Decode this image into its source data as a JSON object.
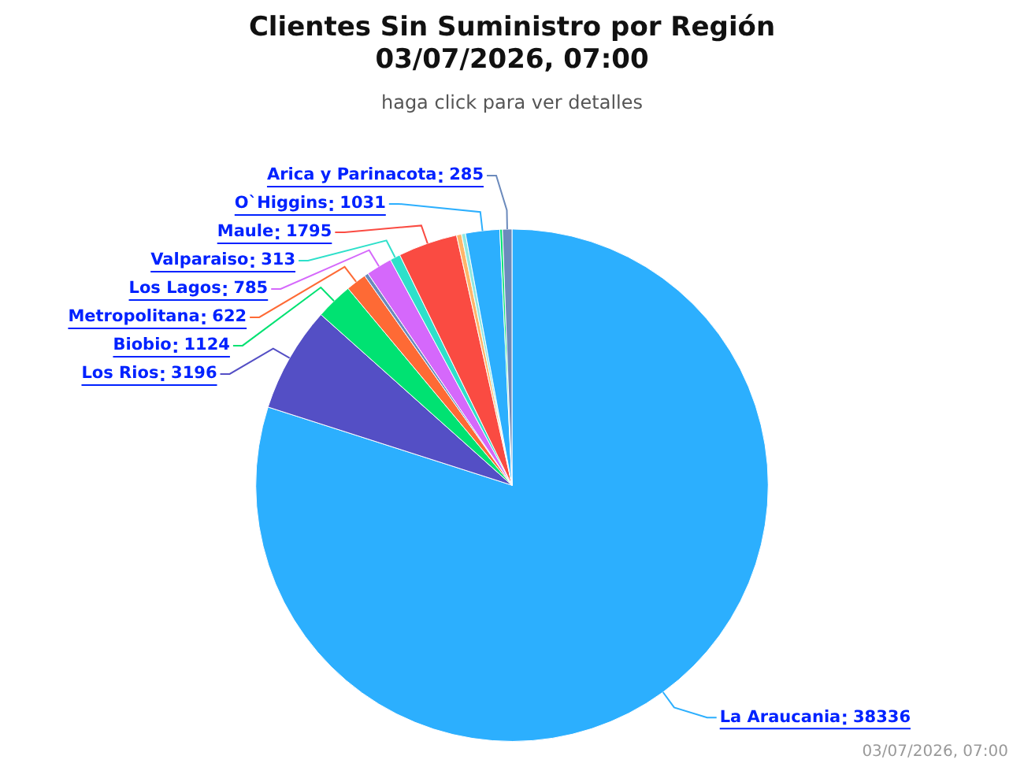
{
  "chart_data": {
    "type": "pie",
    "title": "Clientes Sin Suministro por Región\n03/07/2026, 07:00",
    "subtitle": "haga click para ver detalles",
    "categories": [
      "La Araucania",
      "Los Rios",
      "Biobio",
      "Metropolitana",
      null,
      "Los Lagos",
      "Valparaiso",
      "Maule",
      null,
      null,
      "O`Higgins",
      null,
      "Arica y Parinacota"
    ],
    "value_labels": [
      "38336",
      "3196",
      "1124",
      "622",
      null,
      "785",
      "313",
      "1795",
      null,
      null,
      "1031",
      null,
      "285"
    ],
    "values": [
      38336,
      3196,
      1124,
      622,
      120,
      785,
      313,
      1795,
      150,
      120,
      1031,
      80,
      285
    ],
    "colors": [
      "#2caffe",
      "#544fc5",
      "#00e272",
      "#fe6a35",
      "#6b8abc",
      "#d568fb",
      "#2ee0ca",
      "#fa4b42",
      "#feb56a",
      "#91e8e1",
      "#2caffe",
      "#00e272",
      "#6b8abc"
    ],
    "legend": false,
    "annotations": [
      "03/07/2026, 07:00"
    ]
  }
}
